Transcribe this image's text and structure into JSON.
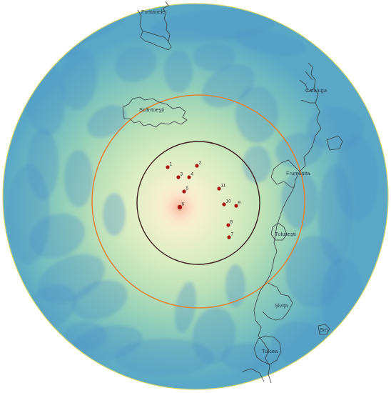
{
  "colors": {
    "center": "#fdebd0",
    "inner": "#e6f0c4",
    "mid": "#b9dfba",
    "outer": "#7ec3bf",
    "edge": "#5ca9c4",
    "rim": "#d9d86a",
    "streaks": "#4d93c6",
    "orange_ring": "#e0843a",
    "dark_ring": "#3a1e1e",
    "site_dot": "#a8140f",
    "boundary": "#3a3f44"
  },
  "towns": [
    {
      "id": "fontanele",
      "label": "Fontanele"
    },
    {
      "id": "scantoesti",
      "label": "Scântoeşti"
    },
    {
      "id": "cataluga",
      "label": "Cataluga"
    },
    {
      "id": "frumuşita",
      "label": "Frumuşita"
    },
    {
      "id": "tulucesti",
      "label": "Tuluceşti"
    },
    {
      "id": "sivita",
      "label": "Şiviţa"
    },
    {
      "id": "tulcea",
      "label": "Tulcea"
    },
    {
      "id": "sm",
      "label": "Sm"
    }
  ],
  "sites": [
    {
      "label": "1"
    },
    {
      "label": "2"
    },
    {
      "label": "3"
    },
    {
      "label": "4"
    },
    {
      "label": "5"
    },
    {
      "label": "6"
    },
    {
      "label": "7"
    },
    {
      "label": "8"
    },
    {
      "label": "9"
    },
    {
      "label": "10"
    },
    {
      "label": "11"
    }
  ]
}
